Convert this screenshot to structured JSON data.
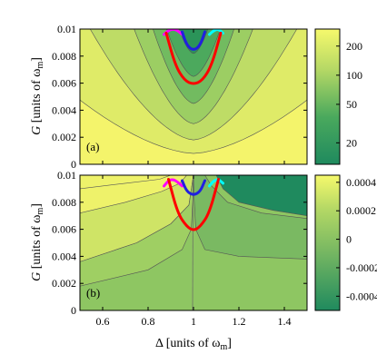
{
  "chart_data": [
    {
      "panel_id": "a",
      "type": "heatmap",
      "panel_label": "(a)",
      "ylabel": "G [units of ωm]",
      "xlim": [
        0.5,
        1.5
      ],
      "ylim": [
        0,
        0.01
      ],
      "yticks": [
        "0",
        "0.002",
        "0.004",
        "0.006",
        "0.008",
        "0.01"
      ],
      "colorbar": {
        "scale": "log",
        "range": [
          12,
          300
        ],
        "ticks": [
          "200",
          "100",
          "50",
          "20"
        ],
        "tick_values": [
          200,
          100,
          50,
          20
        ],
        "low_color": "#1f8a5e",
        "high_color": "#f6f96c"
      },
      "contour_levels": [
        {
          "value": 250,
          "color": "#f4f46b"
        },
        {
          "value": 180,
          "color": "#dfeb68"
        },
        {
          "value": 120,
          "color": "#bedc66"
        },
        {
          "value": 80,
          "color": "#9cce63"
        },
        {
          "value": 50,
          "color": "#72bb60"
        },
        {
          "value": 30,
          "color": "#4ca95d"
        },
        {
          "value": 18,
          "color": "#2b9459"
        }
      ],
      "boundary_curves": [
        {
          "color": "#ff00ff",
          "x": [
            0.87,
            0.89,
            0.91,
            0.93,
            0.95
          ],
          "y": [
            0.0096,
            0.0099,
            0.01,
            0.0099,
            0.0096
          ]
        },
        {
          "color": "#2020e0",
          "x": [
            0.95,
            0.97,
            1.0,
            1.03,
            1.05
          ],
          "y": [
            0.0098,
            0.0088,
            0.0084,
            0.0088,
            0.0098
          ]
        },
        {
          "color": "#00ffff",
          "x": [
            1.07,
            1.09,
            1.11,
            1.13
          ],
          "y": [
            0.0096,
            0.0099,
            0.01,
            0.0097
          ]
        },
        {
          "color": "#ff0000",
          "x": [
            0.88,
            0.92,
            0.96,
            1.0,
            1.04,
            1.08,
            1.12
          ],
          "y": [
            0.0097,
            0.0073,
            0.0062,
            0.0059,
            0.0062,
            0.0073,
            0.0097
          ]
        }
      ]
    },
    {
      "panel_id": "b",
      "type": "heatmap",
      "panel_label": "(b)",
      "xlabel": "Δ [units of ωm]",
      "ylabel": "G [units of ωm]",
      "xlim": [
        0.5,
        1.5
      ],
      "ylim": [
        0,
        0.01
      ],
      "xticks": [
        "0.6",
        "0.8",
        "1",
        "1.2",
        "1.4"
      ],
      "yticks": [
        "0",
        "0.002",
        "0.004",
        "0.006",
        "0.008",
        "0.01"
      ],
      "colorbar": {
        "scale": "linear",
        "range": [
          -0.0005,
          0.00045
        ],
        "ticks": [
          "0.0004",
          "0.0002",
          "0",
          "-0.0002",
          "-0.0004"
        ],
        "tick_values": [
          0.0004,
          0.0002,
          0,
          -0.0002,
          -0.0004
        ],
        "low_color": "#1f8a5e",
        "high_color": "#f6f96c"
      },
      "regions": [
        {
          "value": 0.00042,
          "color": "#eef26a"
        },
        {
          "value": 0.0003,
          "color": "#cfe466"
        },
        {
          "value": 0.0002,
          "color": "#b4d865"
        },
        {
          "value": 0.0001,
          "color": "#9fcf63"
        },
        {
          "value": 3e-05,
          "color": "#8ec662"
        },
        {
          "value": -0.0001,
          "color": "#7ab962"
        },
        {
          "value": -0.0005,
          "color": "#1f8a5e"
        }
      ],
      "boundary_curves": [
        {
          "color": "#ff00ff",
          "x": [
            0.87,
            0.89,
            0.91,
            0.93,
            0.95
          ],
          "y": [
            0.0092,
            0.0096,
            0.0097,
            0.0095,
            0.0092
          ]
        },
        {
          "color": "#2020e0",
          "x": [
            0.95,
            0.97,
            1.0,
            1.03,
            1.05
          ],
          "y": [
            0.0096,
            0.0088,
            0.0085,
            0.0088,
            0.0096
          ]
        },
        {
          "color": "#00ffff",
          "x": [
            1.07,
            1.09,
            1.11,
            1.13
          ],
          "y": [
            0.0092,
            0.0096,
            0.0097,
            0.0094
          ]
        },
        {
          "color": "#ff0000",
          "x": [
            0.89,
            0.93,
            0.97,
            1.0,
            1.03,
            1.07,
            1.11
          ],
          "y": [
            0.0097,
            0.0072,
            0.0062,
            0.0059,
            0.0062,
            0.0072,
            0.0097
          ]
        }
      ]
    }
  ],
  "axis_text": {
    "ylabel_main": "G",
    "ylabel_units": "[units of ω",
    "ylabel_sub": "m",
    "ylabel_close": "]",
    "xlabel_main": "Δ [units of ω",
    "xlabel_sub": "m",
    "xlabel_close": "]"
  }
}
